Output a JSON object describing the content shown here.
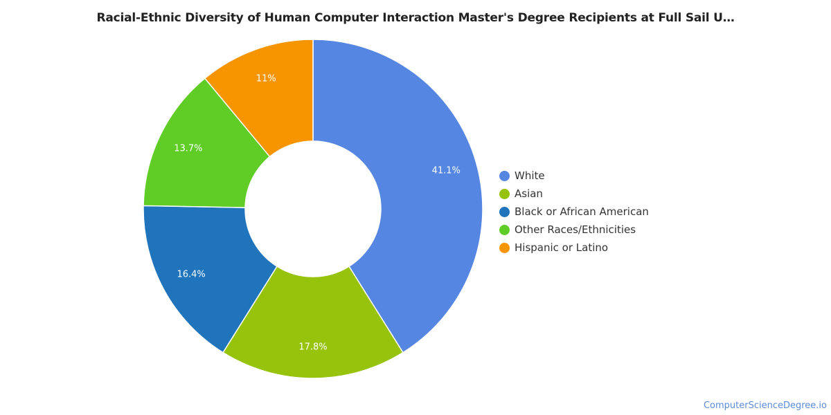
{
  "chart_data": {
    "type": "pie",
    "title": "Racial-Ethnic Diversity of Human Computer Interaction Master's Degree Recipients at Full Sail U…",
    "donut": true,
    "legend_position": "right",
    "slices": [
      {
        "label": "White",
        "value": 41.1,
        "value_label": "41.1%",
        "color": "#5486e2"
      },
      {
        "label": "Asian",
        "value": 17.8,
        "value_label": "17.8%",
        "color": "#97c30c"
      },
      {
        "label": "Black or African American",
        "value": 16.4,
        "value_label": "16.4%",
        "color": "#1f74bc"
      },
      {
        "label": "Other Races/Ethnicities",
        "value": 13.7,
        "value_label": "13.7%",
        "color": "#60cd27"
      },
      {
        "label": "Hispanic or Latino",
        "value": 11.0,
        "value_label": "11%",
        "color": "#f69500"
      }
    ]
  },
  "source": "ComputerScienceDegree.io"
}
